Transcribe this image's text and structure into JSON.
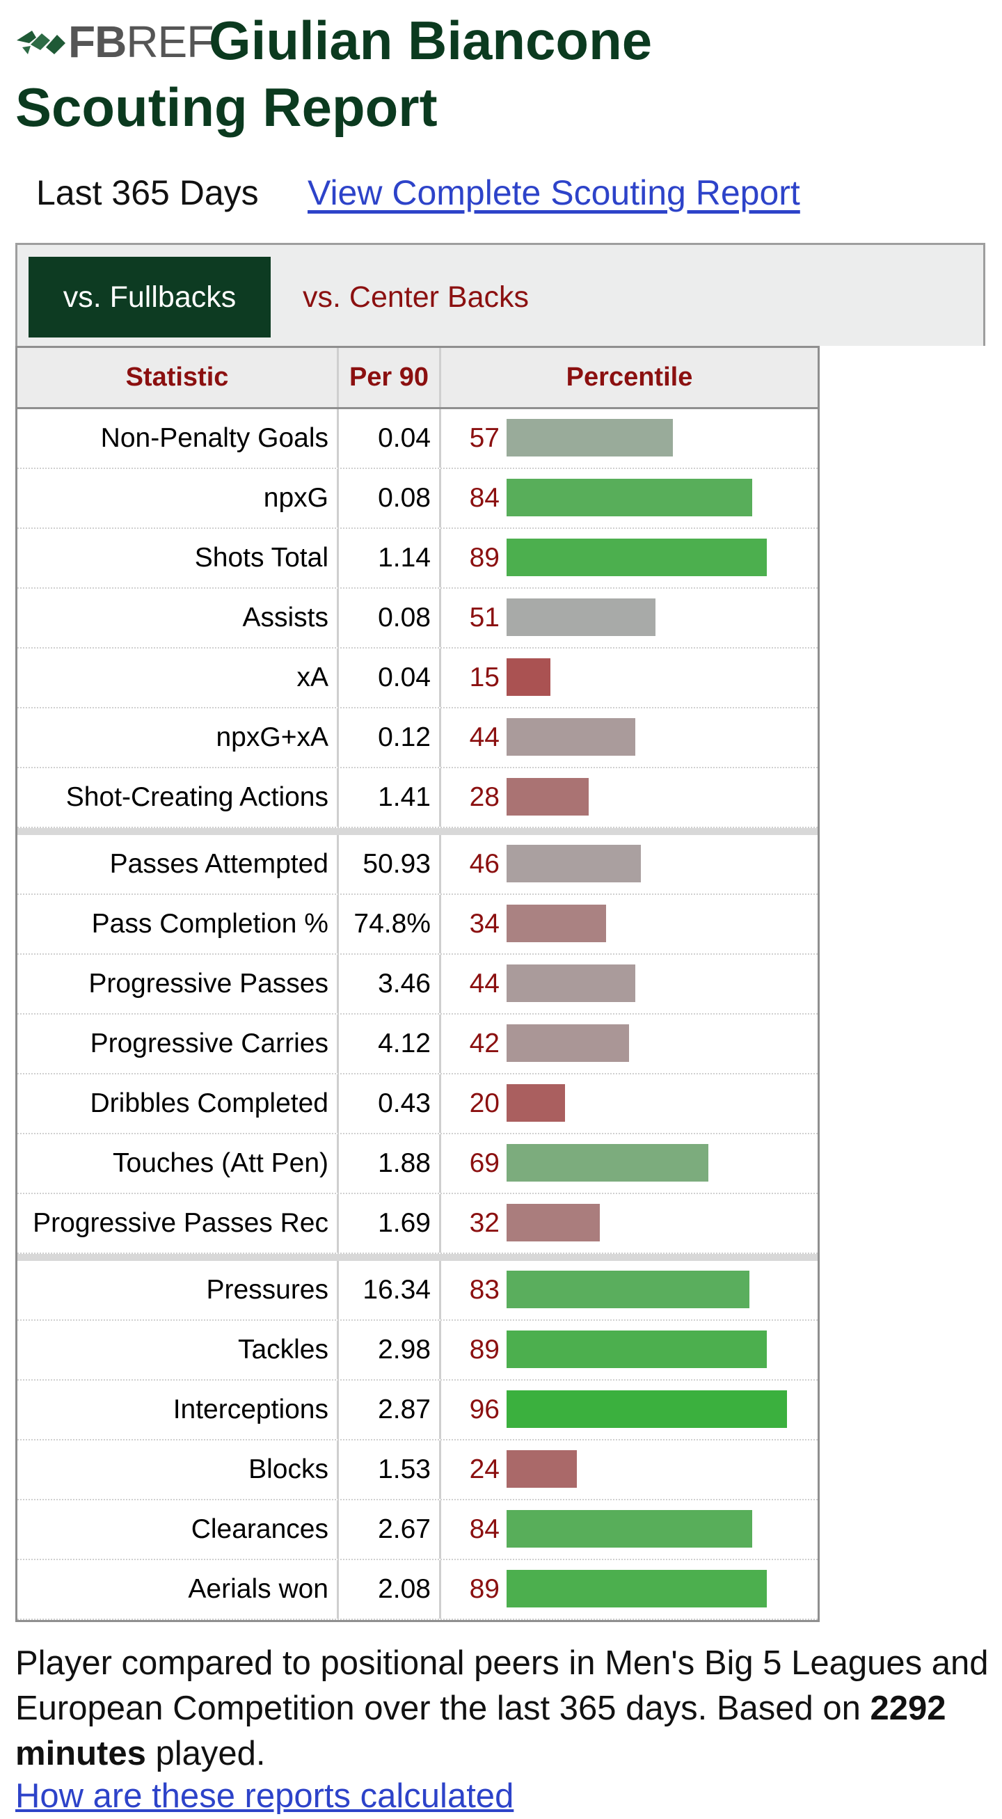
{
  "site": {
    "logo_bold": "FB",
    "logo_light": "REF"
  },
  "title": "Giulian Biancone Scouting Report",
  "period_label": "Last 365 Days",
  "complete_report_link": "View Complete Scouting Report",
  "comparison_tabs": [
    {
      "label": "vs. Fullbacks",
      "active": true
    },
    {
      "label": "vs. Center Backs",
      "active": false
    }
  ],
  "table": {
    "headers": [
      "Statistic",
      "Per 90",
      "Percentile"
    ],
    "groups": [
      [
        {
          "stat": "Non-Penalty Goals",
          "per90": "0.04",
          "percentile": 57
        },
        {
          "stat": "npxG",
          "per90": "0.08",
          "percentile": 84
        },
        {
          "stat": "Shots Total",
          "per90": "1.14",
          "percentile": 89
        },
        {
          "stat": "Assists",
          "per90": "0.08",
          "percentile": 51
        },
        {
          "stat": "xA",
          "per90": "0.04",
          "percentile": 15
        },
        {
          "stat": "npxG+xA",
          "per90": "0.12",
          "percentile": 44
        },
        {
          "stat": "Shot-Creating Actions",
          "per90": "1.41",
          "percentile": 28
        }
      ],
      [
        {
          "stat": "Passes Attempted",
          "per90": "50.93",
          "percentile": 46
        },
        {
          "stat": "Pass Completion %",
          "per90": "74.8%",
          "percentile": 34
        },
        {
          "stat": "Progressive Passes",
          "per90": "3.46",
          "percentile": 44
        },
        {
          "stat": "Progressive Carries",
          "per90": "4.12",
          "percentile": 42
        },
        {
          "stat": "Dribbles Completed",
          "per90": "0.43",
          "percentile": 20
        },
        {
          "stat": "Touches (Att Pen)",
          "per90": "1.88",
          "percentile": 69
        },
        {
          "stat": "Progressive Passes Rec",
          "per90": "1.69",
          "percentile": 32
        }
      ],
      [
        {
          "stat": "Pressures",
          "per90": "16.34",
          "percentile": 83
        },
        {
          "stat": "Tackles",
          "per90": "2.98",
          "percentile": 89
        },
        {
          "stat": "Interceptions",
          "per90": "2.87",
          "percentile": 96
        },
        {
          "stat": "Blocks",
          "per90": "1.53",
          "percentile": 24
        },
        {
          "stat": "Clearances",
          "per90": "2.67",
          "percentile": 84
        },
        {
          "stat": "Aerials won",
          "per90": "2.08",
          "percentile": 89
        }
      ]
    ]
  },
  "footnote": {
    "text_before": "Player compared to positional peers in Men's Big 5 Leagues and European Competition over the last 365 days. Based on ",
    "minutes": "2292 minutes",
    "text_after": " played.",
    "link": "How are these reports calculated"
  },
  "colors": {
    "title_green": "#0b3a1f",
    "active_tab": "#0d3b22",
    "header_red": "#8b1010",
    "link_blue": "#2d43c9"
  }
}
